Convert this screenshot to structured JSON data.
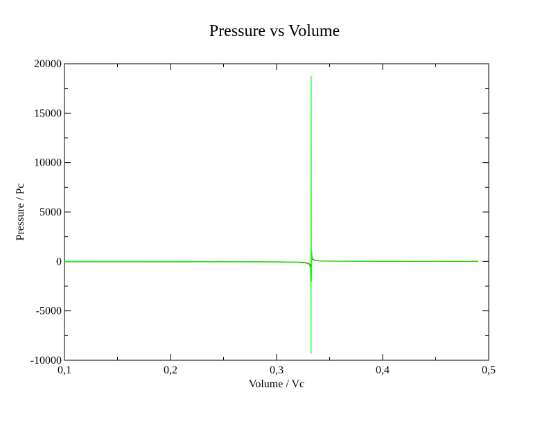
{
  "chart_data": {
    "type": "line",
    "title": "Pressure vs Volume",
    "xlabel": "Volume / Vc",
    "ylabel": "Pressure / Pc",
    "xlim": [
      0.1,
      0.5
    ],
    "ylim": [
      -10000,
      20000
    ],
    "x_ticks": [
      0.1,
      0.2,
      0.3,
      0.4,
      0.5
    ],
    "x_tick_labels": [
      "0,1",
      "0,2",
      "0,3",
      "0,4",
      "0,5"
    ],
    "y_ticks": [
      -10000,
      -5000,
      0,
      5000,
      10000,
      15000,
      20000
    ],
    "y_tick_labels": [
      "-10000",
      "-5000",
      "0",
      "5000",
      "10000",
      "15000",
      "20000"
    ],
    "grid": false,
    "legend": "none",
    "series": [
      {
        "color": "#000000",
        "x": [
          0.1,
          0.2,
          0.3,
          0.32,
          0.328,
          0.331,
          0.3325,
          0.333,
          0.3335,
          0.334,
          0.336,
          0.34,
          0.35,
          0.4,
          0.49
        ],
        "y": [
          -20,
          -30,
          -50,
          -80,
          -150,
          -300,
          -500,
          0,
          500,
          250,
          120,
          60,
          30,
          15,
          10
        ]
      },
      {
        "color": "#ff0000",
        "x": [
          0.1,
          0.2,
          0.3,
          0.32,
          0.328,
          0.331,
          0.3325,
          0.333,
          0.3335,
          0.334,
          0.336,
          0.34,
          0.35,
          0.4,
          0.49
        ],
        "y": [
          -15,
          -25,
          -45,
          -70,
          -120,
          -250,
          -450,
          0,
          450,
          220,
          100,
          50,
          25,
          12,
          8
        ]
      },
      {
        "color": "#00ff00",
        "x": [
          0.1,
          0.2,
          0.3,
          0.325,
          0.331,
          0.332,
          0.3325,
          0.33255,
          0.3326,
          0.3328,
          0.3329,
          0.333,
          0.3331,
          0.3332,
          0.3335,
          0.334,
          0.336,
          0.34,
          0.35,
          0.4,
          0.49
        ],
        "y": [
          -10,
          -20,
          -40,
          -80,
          -300,
          -900,
          -3000,
          -9300,
          18700,
          1500,
          -2000,
          -600,
          600,
          1000,
          400,
          200,
          100,
          60,
          30,
          15,
          10
        ]
      }
    ]
  }
}
